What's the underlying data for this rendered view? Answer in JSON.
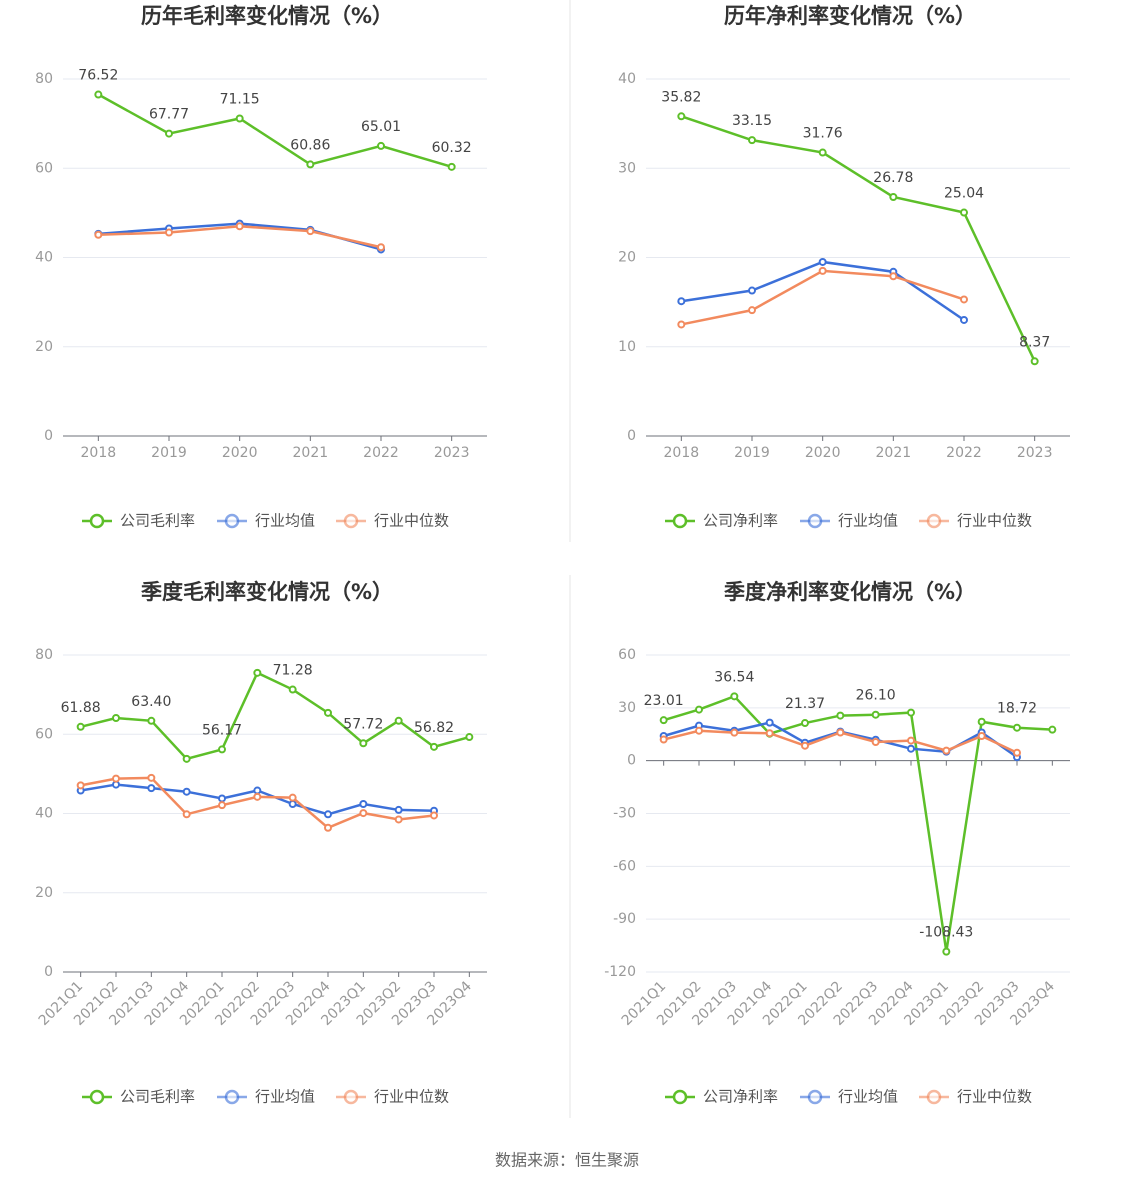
{
  "chart_data": [
    {
      "type": "line",
      "title": "历年毛利率变化情况（%）",
      "categories": [
        "2018",
        "2019",
        "2020",
        "2021",
        "2022",
        "2023"
      ],
      "ylim": [
        0,
        80
      ],
      "yticks": [
        0,
        20,
        40,
        60,
        80
      ],
      "grid": true,
      "series": [
        {
          "name": "公司毛利率",
          "color": "#5dbf29",
          "values": [
            76.52,
            67.77,
            71.15,
            60.86,
            65.01,
            60.32
          ],
          "value_labels": [
            "76.52",
            "67.77",
            "71.15",
            "60.86",
            "65.01",
            "60.32"
          ]
        },
        {
          "name": "行业均值",
          "color": "#3c70d9",
          "values": [
            45.3,
            46.5,
            47.6,
            46.2,
            41.8,
            null
          ]
        },
        {
          "name": "行业中位数",
          "color": "#f28a5e",
          "values": [
            45.1,
            45.6,
            47.0,
            45.9,
            42.3,
            null
          ]
        }
      ]
    },
    {
      "type": "line",
      "title": "历年净利率变化情况（%）",
      "categories": [
        "2018",
        "2019",
        "2020",
        "2021",
        "2022",
        "2023"
      ],
      "ylim": [
        0,
        40
      ],
      "yticks": [
        0,
        10,
        20,
        30,
        40
      ],
      "grid": true,
      "series": [
        {
          "name": "公司净利率",
          "color": "#5dbf29",
          "values": [
            35.82,
            33.15,
            31.76,
            26.78,
            25.04,
            8.37
          ],
          "value_labels": [
            "35.82",
            "33.15",
            "31.76",
            "26.78",
            "25.04",
            "8.37"
          ]
        },
        {
          "name": "行业均值",
          "color": "#3c70d9",
          "values": [
            15.1,
            16.3,
            19.5,
            18.4,
            13.0,
            null
          ]
        },
        {
          "name": "行业中位数",
          "color": "#f28a5e",
          "values": [
            12.5,
            14.1,
            18.5,
            17.9,
            15.3,
            null
          ]
        }
      ]
    },
    {
      "type": "line",
      "title": "季度毛利率变化情况（%）",
      "categories": [
        "2021Q1",
        "2021Q2",
        "2021Q3",
        "2021Q4",
        "2022Q1",
        "2022Q2",
        "2022Q3",
        "2022Q4",
        "2023Q1",
        "2023Q2",
        "2023Q3",
        "2023Q4"
      ],
      "ylim": [
        0,
        80
      ],
      "yticks": [
        0,
        20,
        40,
        60,
        80
      ],
      "grid": true,
      "series": [
        {
          "name": "公司毛利率",
          "color": "#5dbf29",
          "values": [
            61.88,
            64.1,
            63.4,
            53.8,
            56.17,
            75.5,
            71.28,
            65.4,
            57.72,
            63.4,
            56.82,
            59.3
          ],
          "value_labels": [
            "61.88",
            null,
            "63.40",
            null,
            "56.17",
            null,
            "71.28",
            null,
            "57.72",
            null,
            "56.82",
            null
          ]
        },
        {
          "name": "行业均值",
          "color": "#3c70d9",
          "values": [
            45.8,
            47.3,
            46.4,
            45.5,
            43.8,
            45.8,
            42.4,
            39.8,
            42.4,
            40.9,
            40.7,
            null
          ]
        },
        {
          "name": "行业中位数",
          "color": "#f28a5e",
          "values": [
            47.1,
            48.8,
            49.0,
            39.8,
            42.1,
            44.2,
            44.0,
            36.4,
            40.1,
            38.5,
            39.5,
            null
          ]
        }
      ]
    },
    {
      "type": "line",
      "title": "季度净利率变化情况（%）",
      "categories": [
        "2021Q1",
        "2021Q2",
        "2021Q3",
        "2021Q4",
        "2022Q1",
        "2022Q2",
        "2022Q3",
        "2022Q4",
        "2023Q1",
        "2023Q2",
        "2023Q3",
        "2023Q4"
      ],
      "ylim": [
        -120,
        60
      ],
      "yticks": [
        -120,
        -90,
        -60,
        -30,
        0,
        30,
        60
      ],
      "grid": true,
      "series": [
        {
          "name": "公司净利率",
          "color": "#5dbf29",
          "values": [
            23.01,
            29.0,
            36.54,
            15.3,
            21.37,
            25.6,
            26.1,
            27.3,
            -108.43,
            22.1,
            18.72,
            17.6
          ],
          "value_labels": [
            "23.01",
            null,
            "36.54",
            null,
            "21.37",
            null,
            "26.10",
            null,
            "-108.43",
            null,
            "18.72",
            null
          ]
        },
        {
          "name": "行业均值",
          "color": "#3c70d9",
          "values": [
            14.0,
            19.9,
            17.0,
            21.6,
            10.2,
            16.5,
            11.9,
            6.8,
            5.1,
            16.0,
            2.0,
            null
          ]
        },
        {
          "name": "行业中位数",
          "color": "#f28a5e",
          "values": [
            12.0,
            17.0,
            15.9,
            15.6,
            8.5,
            16.0,
            10.6,
            11.4,
            5.7,
            14.0,
            4.5,
            null
          ]
        }
      ]
    }
  ],
  "source": "数据来源：恒生聚源"
}
